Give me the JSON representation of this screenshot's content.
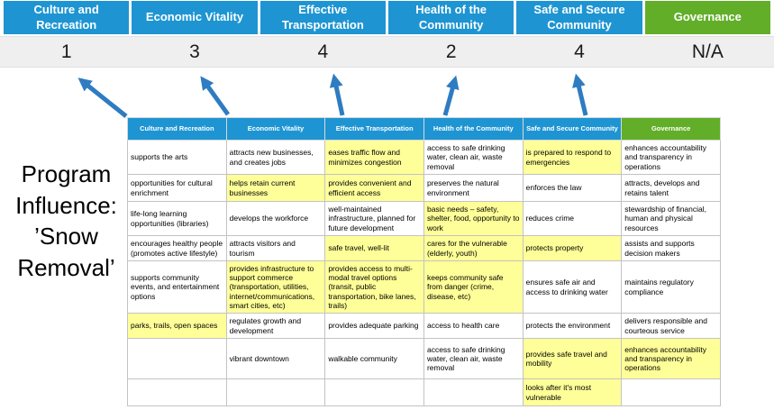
{
  "slide_title": "Program Influence: ’Snow Removal’",
  "scoreboard": {
    "pillars": [
      {
        "label": "Culture and Recreation",
        "type": "blue",
        "score": "1"
      },
      {
        "label": "Economic Vitality",
        "type": "blue",
        "score": "3"
      },
      {
        "label": "Effective Transportation",
        "type": "blue",
        "score": "4"
      },
      {
        "label": "Health of the Community",
        "type": "blue",
        "score": "2"
      },
      {
        "label": "Safe and Secure Community",
        "type": "blue",
        "score": "4"
      },
      {
        "label": "Governance",
        "type": "green",
        "score": "N/A"
      }
    ]
  },
  "matrix": {
    "headers": [
      {
        "label": "Culture and Recreation",
        "type": "blue"
      },
      {
        "label": "Economic Vitality",
        "type": "blue"
      },
      {
        "label": "Effective Transportation",
        "type": "blue"
      },
      {
        "label": "Health of the Community",
        "type": "blue"
      },
      {
        "label": "Safe and Secure Community",
        "type": "blue"
      },
      {
        "label": "Governance",
        "type": "green"
      }
    ],
    "rows": [
      [
        {
          "text": "supports the arts"
        },
        {
          "text": "attracts new businesses, and creates jobs"
        },
        {
          "text": "eases traffic flow and minimizes congestion",
          "hl": true
        },
        {
          "text": "access to safe drinking water, clean air, waste removal"
        },
        {
          "text": "is prepared to respond to emergencies",
          "hl": true
        },
        {
          "text": "enhances accountability and transparency in operations"
        }
      ],
      [
        {
          "text": "opportunities for cultural enrichment"
        },
        {
          "text": "helps retain current businesses",
          "hl": true
        },
        {
          "text": "provides convenient and efficient access",
          "hl": true
        },
        {
          "text": "preserves the natural environment"
        },
        {
          "text": "enforces the law"
        },
        {
          "text": "attracts, develops and retains talent"
        }
      ],
      [
        {
          "text": "life-long learning opportunities (libraries)"
        },
        {
          "text": "develops the workforce"
        },
        {
          "text": "well-maintained infrastructure, planned for future development"
        },
        {
          "text": "basic needs – safety, shelter, food, opportunity to work",
          "hl": true
        },
        {
          "text": "reduces crime"
        },
        {
          "text": "stewardship of financial, human and physical resources"
        }
      ],
      [
        {
          "text": "encourages healthy people (promotes active lifestyle)"
        },
        {
          "text": "attracts visitors and tourism"
        },
        {
          "text": "safe travel, well-lit",
          "hl": true
        },
        {
          "text": "cares for the vulnerable (elderly, youth)",
          "hl": true
        },
        {
          "text": "protects property",
          "hl": true
        },
        {
          "text": "assists and supports decision makers"
        }
      ],
      [
        {
          "text": "supports community events, and entertainment options"
        },
        {
          "text": "provides infrastructure to support commerce (transportation, utilities, internet/communications, smart cities, etc)",
          "hl": true
        },
        {
          "text": "provides access to multi-modal travel options (transit, public transportation, bike lanes, trails)",
          "hl": true
        },
        {
          "text": "keeps community safe from danger (crime, disease, etc)",
          "hl": true
        },
        {
          "text": "ensures safe air and access to drinking water"
        },
        {
          "text": "maintains regulatory compliance"
        }
      ],
      [
        {
          "text": "parks, trails, open spaces",
          "hl": true
        },
        {
          "text": "regulates growth and development"
        },
        {
          "text": "provides adequate parking"
        },
        {
          "text": "access to health care"
        },
        {
          "text": "protects the environment"
        },
        {
          "text": "delivers responsible and courteous service"
        }
      ],
      [
        {
          "text": ""
        },
        {
          "text": "vibrant downtown"
        },
        {
          "text": "walkable community"
        },
        {
          "text": "access to safe drinking water, clean air, waste removal"
        },
        {
          "text": "provides safe travel and mobility",
          "hl": true
        },
        {
          "text": "enhances accountability and transparency in operations",
          "hl": true
        }
      ],
      [
        {
          "text": ""
        },
        {
          "text": ""
        },
        {
          "text": ""
        },
        {
          "text": ""
        },
        {
          "text": "looks after it's most vulnerable",
          "hl": true
        },
        {
          "text": ""
        }
      ]
    ]
  },
  "colors": {
    "pillar_blue": "#1e95d2",
    "pillar_green": "#62ae29",
    "highlight_yellow": "#ffff99",
    "score_band_gray": "#efefef",
    "arrow_blue": "#2e7cc1"
  }
}
